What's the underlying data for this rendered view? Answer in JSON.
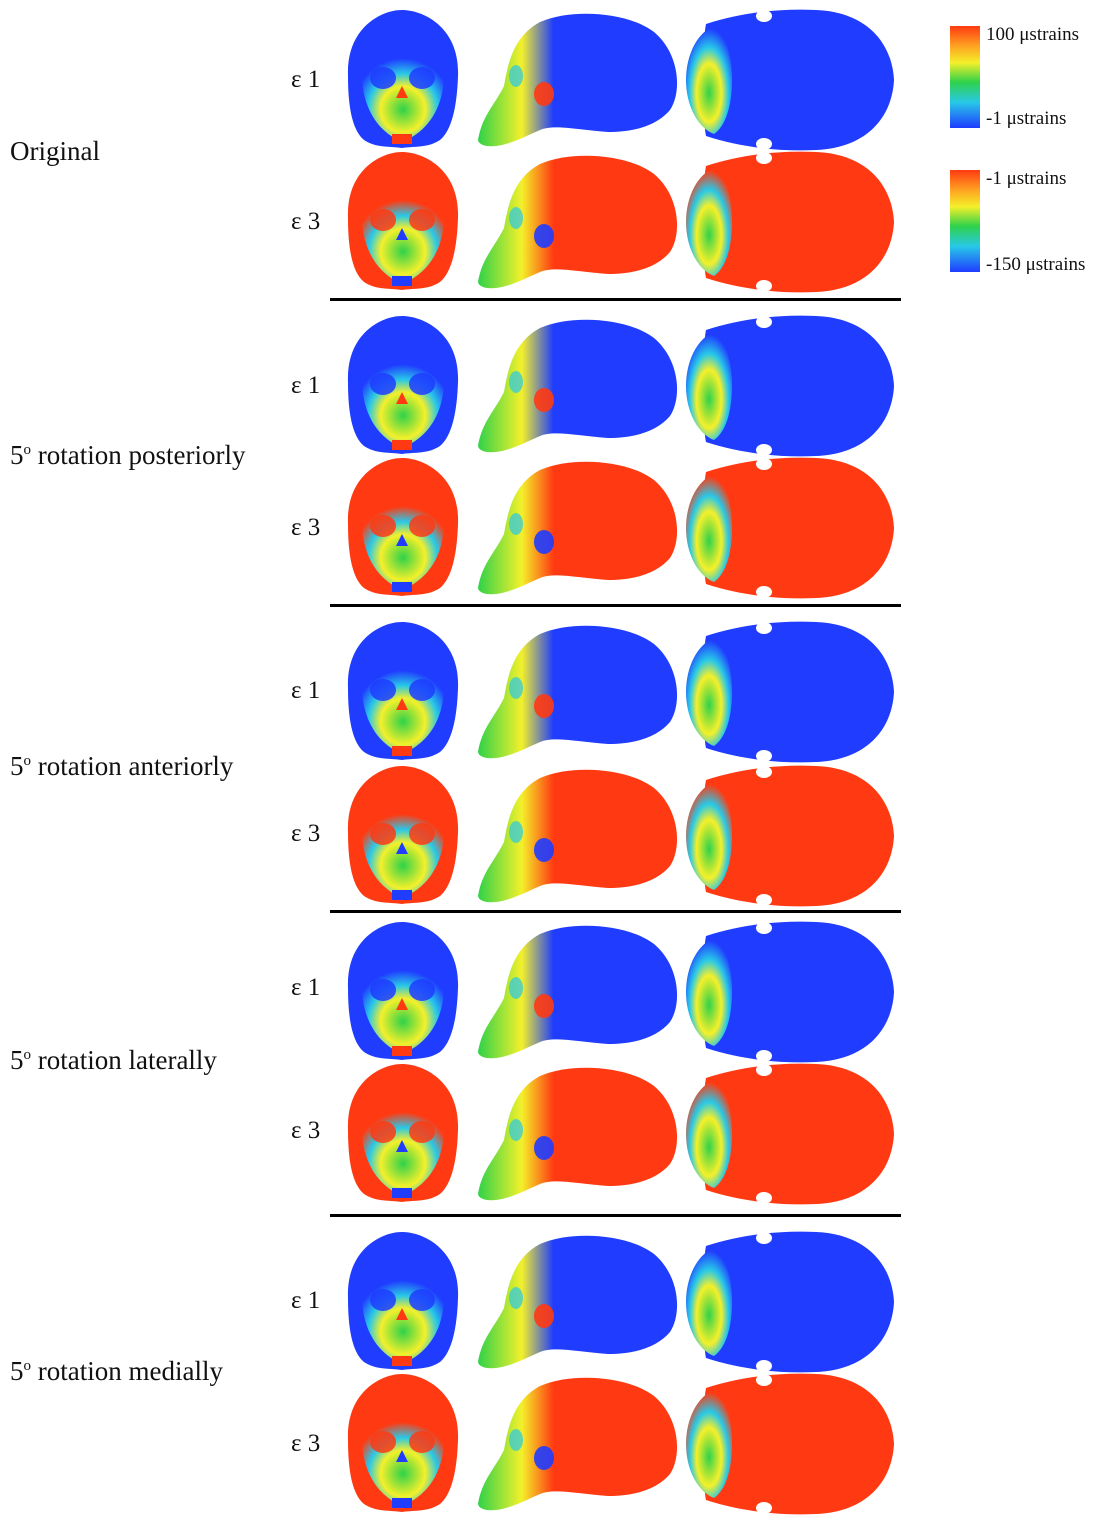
{
  "rows": [
    {
      "label_prefix": "5",
      "label_text": "Original",
      "show_prefix": false
    },
    {
      "label_prefix": "5",
      "label_text": "rotation posteriorly",
      "show_prefix": true
    },
    {
      "label_prefix": "5",
      "label_text": "rotation anteriorly",
      "show_prefix": true
    },
    {
      "label_prefix": "5",
      "label_text": "rotation laterally",
      "show_prefix": true
    },
    {
      "label_prefix": "5",
      "label_text": "rotation medially",
      "show_prefix": true
    }
  ],
  "degree_sign": "o",
  "strain_labels": {
    "e1": "ε 1",
    "e3": "ε 3"
  },
  "legend": {
    "e1": {
      "max": "100 μstrains",
      "min": "-1 μstrains"
    },
    "e3": {
      "max": "-1 μstrains",
      "min": "-150 μstrains"
    }
  },
  "colors": {
    "low": "#1f3cff",
    "cyan": "#28c8e8",
    "green": "#2fd24a",
    "yellow": "#f4f02a",
    "high": "#ff3a12"
  }
}
